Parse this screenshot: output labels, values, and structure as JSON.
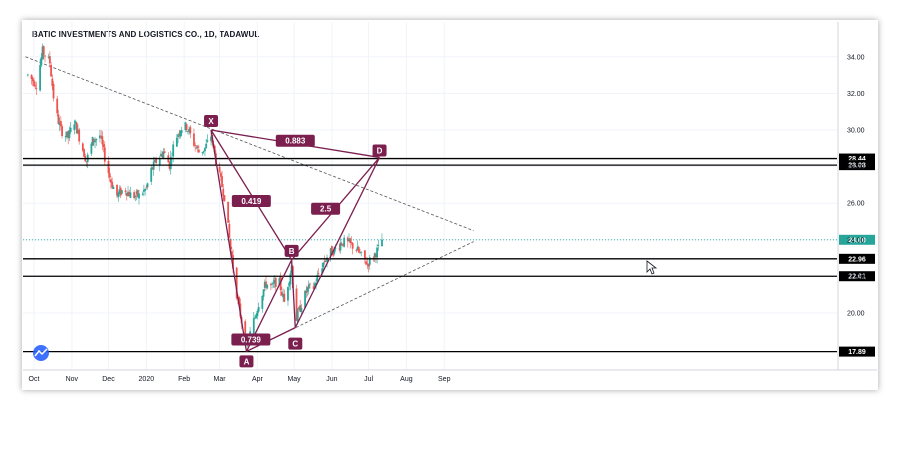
{
  "chart_data": {
    "type": "candlestick",
    "title": "BATIC INVESTMENTS AND LOGISTICS CO., 1D, TADAWUL",
    "x_ticks": [
      "Oct",
      "Nov",
      "Dec",
      "2020",
      "Feb",
      "Mar",
      "Apr",
      "May",
      "Jun",
      "Jul",
      "Aug",
      "Sep"
    ],
    "y_ticks": [
      20.0,
      22.0,
      24.0,
      26.0,
      28.0,
      30.0,
      32.0,
      34.0
    ],
    "ylim": [
      17.0,
      35.5
    ],
    "grid": true,
    "horizontal_levels": [
      {
        "value": 28.44,
        "label": "28.44"
      },
      {
        "value": 28.08,
        "label": "28.08"
      },
      {
        "value": 22.96,
        "label": "22.96"
      },
      {
        "value": 22.01,
        "label": "22.01"
      },
      {
        "value": 17.89,
        "label": "17.89"
      }
    ],
    "last_price": {
      "value": 24.0,
      "label": "24.00",
      "color": "#26a69a"
    },
    "pattern_points": [
      {
        "label": "X",
        "date": "2020-02-23",
        "value": 30.0
      },
      {
        "label": "A",
        "date": "2020-03-23",
        "value": 17.9
      },
      {
        "label": "B",
        "date": "2020-04-29",
        "value": 22.9
      },
      {
        "label": "C",
        "date": "2020-05-02",
        "value": 19.2
      },
      {
        "label": "D",
        "date": "2020-07-10",
        "value": 28.5
      }
    ],
    "ratios": [
      {
        "label": "0.419",
        "from": "X",
        "to": "B"
      },
      {
        "label": "0.739",
        "from": "A",
        "to": "C"
      },
      {
        "label": "2.5",
        "from": "B",
        "to": "D"
      },
      {
        "label": "0.883",
        "from": "X",
        "to": "D"
      }
    ],
    "colors": {
      "up": "#26a69a",
      "down": "#ef5350",
      "pattern": "#7b1f4e",
      "level": "#000000"
    }
  }
}
